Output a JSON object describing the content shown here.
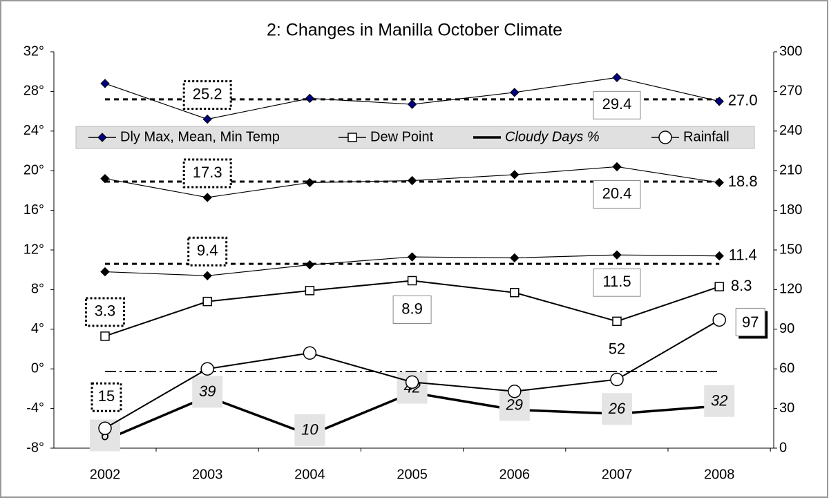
{
  "chart_data": {
    "type": "line",
    "title": "2: Changes in Manilla October Climate",
    "categories": [
      "2002",
      "2003",
      "2004",
      "2005",
      "2006",
      "2007",
      "2008"
    ],
    "ylim": [
      -8,
      32
    ],
    "yticks": [
      {
        "value": -8,
        "label": "-8°"
      },
      {
        "value": -4,
        "label": "-4°"
      },
      {
        "value": 0,
        "label": "0°"
      },
      {
        "value": 4,
        "label": "4°"
      },
      {
        "value": 8,
        "label": "8°"
      },
      {
        "value": 12,
        "label": "12°"
      },
      {
        "value": 16,
        "label": "16°"
      },
      {
        "value": 20,
        "label": "20°"
      },
      {
        "value": 24,
        "label": "24°"
      },
      {
        "value": 28,
        "label": "28°"
      },
      {
        "value": 32,
        "label": "32°"
      }
    ],
    "y2lim": [
      0,
      300
    ],
    "y2ticks": [
      0,
      30,
      60,
      90,
      120,
      150,
      180,
      210,
      240,
      270,
      300
    ],
    "series": [
      {
        "name": "Dly Max, Mean, Min Temp",
        "color": "#000080",
        "marker": "diamond",
        "values": [
          28.8,
          25.2,
          27.3,
          26.7,
          27.9,
          29.4,
          27.0
        ],
        "value_labels": [
          null,
          "25.2",
          null,
          null,
          null,
          "29.4",
          "27.0"
        ]
      },
      {
        "color": "#000000",
        "marker": "diamond",
        "values": [
          19.2,
          17.3,
          18.8,
          19.0,
          19.6,
          20.4,
          18.8
        ],
        "value_labels": [
          null,
          "17.3",
          null,
          null,
          null,
          "20.4",
          "18.8"
        ]
      },
      {
        "color": "#000000",
        "marker": "diamond",
        "values": [
          9.8,
          9.4,
          10.5,
          11.3,
          11.2,
          11.5,
          11.4
        ],
        "value_labels": [
          null,
          "9.4",
          null,
          null,
          null,
          "11.5",
          "11.4"
        ]
      },
      {
        "name": "Dew Point",
        "color": "#000000",
        "marker": "square",
        "values": [
          3.3,
          6.8,
          7.9,
          8.9,
          7.7,
          4.8,
          8.3
        ],
        "value_labels": [
          "3.3",
          null,
          null,
          "8.9",
          null,
          null,
          "8.3"
        ]
      },
      {
        "name": "Cloudy Days %",
        "color": "#000000",
        "marker": "none",
        "axis": "y2",
        "values": [
          6,
          39,
          10,
          42,
          29,
          26,
          32
        ],
        "value_labels": [
          "6",
          "39",
          "10",
          "42",
          "29",
          "26",
          "32"
        ]
      },
      {
        "name": "Rainfall",
        "color": "#000000",
        "marker": "circle",
        "axis": "y2",
        "values": [
          15,
          60,
          72,
          50,
          43,
          52,
          97
        ],
        "value_labels": [
          "15",
          null,
          null,
          null,
          null,
          "52",
          "97"
        ]
      }
    ],
    "reference_lines": [
      {
        "value": 27.2
      },
      {
        "value": 18.9
      },
      {
        "value": 10.6
      },
      {
        "value": 58,
        "axis": "y2"
      }
    ]
  }
}
